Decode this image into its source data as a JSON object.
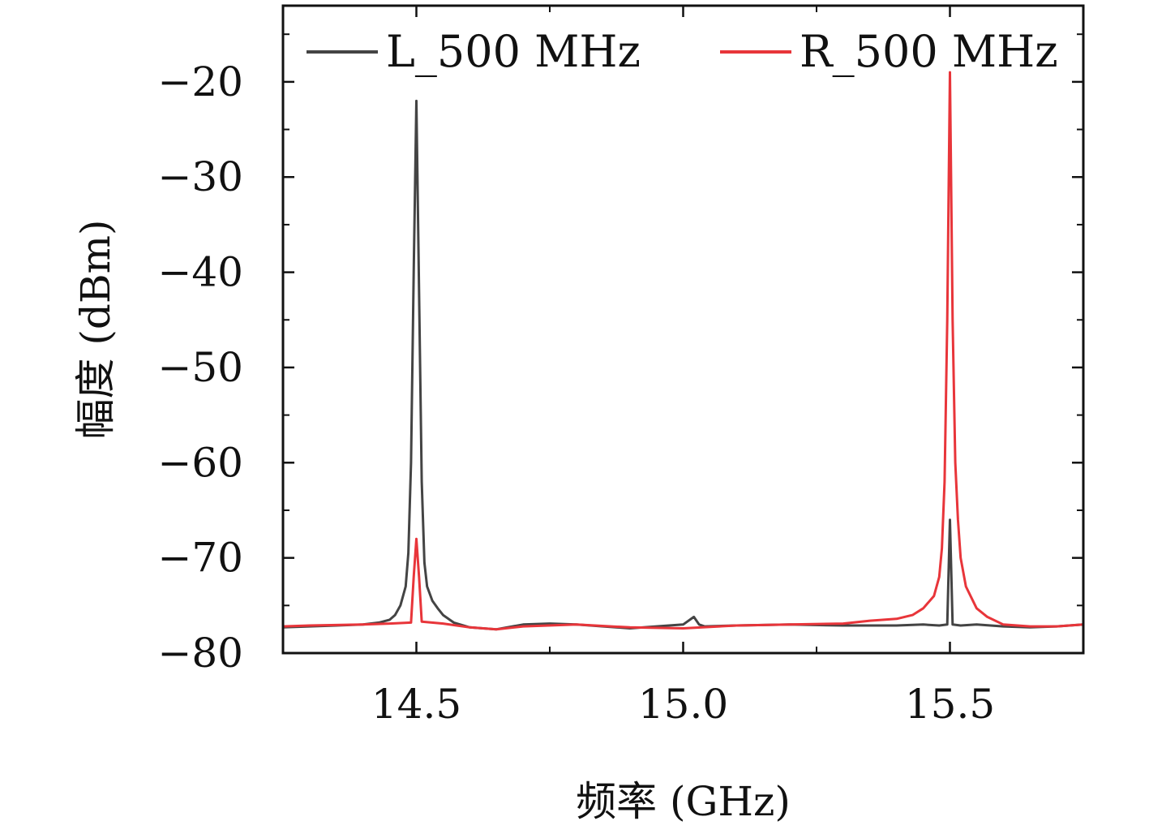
{
  "chart_data": {
    "type": "line",
    "title": "",
    "xlabel": "频率 (GHz)",
    "ylabel": "幅度 (dBm)",
    "xlim": [
      14.25,
      15.75
    ],
    "ylim": [
      -80,
      -12
    ],
    "xticks": [
      14.5,
      15.0,
      15.5
    ],
    "xtick_labels": [
      "14.5",
      "15.0",
      "15.5"
    ],
    "yticks": [
      -80,
      -70,
      -60,
      -50,
      -40,
      -30,
      -20
    ],
    "ytick_labels": [
      "−80",
      "−70",
      "−60",
      "−50",
      "−40",
      "−30",
      "−20"
    ],
    "grid": false,
    "legend_position": "top",
    "series": [
      {
        "name": "L_500 MHz",
        "color": "#444444",
        "x": [
          14.25,
          14.3,
          14.35,
          14.4,
          14.43,
          14.45,
          14.46,
          14.47,
          14.48,
          14.485,
          14.49,
          14.495,
          14.5,
          14.505,
          14.51,
          14.515,
          14.52,
          14.53,
          14.54,
          14.55,
          14.57,
          14.6,
          14.65,
          14.7,
          14.75,
          14.8,
          14.85,
          14.9,
          14.95,
          15.0,
          15.02,
          15.03,
          15.04,
          15.1,
          15.2,
          15.3,
          15.4,
          15.45,
          15.48,
          15.495,
          15.5,
          15.505,
          15.52,
          15.55,
          15.6,
          15.65,
          15.7,
          15.75
        ],
        "y": [
          -77.3,
          -77.2,
          -77.1,
          -77.0,
          -76.8,
          -76.5,
          -76.0,
          -75.0,
          -73.0,
          -69.5,
          -60.0,
          -40.0,
          -22.0,
          -42.0,
          -62.0,
          -70.5,
          -73.0,
          -74.5,
          -75.3,
          -76.0,
          -76.8,
          -77.3,
          -77.5,
          -77.0,
          -76.9,
          -77.0,
          -77.2,
          -77.4,
          -77.2,
          -77.0,
          -76.2,
          -77.0,
          -77.2,
          -77.1,
          -77.0,
          -77.1,
          -77.1,
          -77.0,
          -77.1,
          -77.0,
          -66.0,
          -77.0,
          -77.1,
          -77.0,
          -77.2,
          -77.3,
          -77.2,
          -77.0
        ]
      },
      {
        "name": "R_500 MHz",
        "color": "#e8353a",
        "x": [
          14.25,
          14.3,
          14.4,
          14.45,
          14.49,
          14.495,
          14.5,
          14.505,
          14.51,
          14.55,
          14.6,
          14.65,
          14.7,
          14.8,
          14.9,
          15.0,
          15.1,
          15.2,
          15.3,
          15.35,
          15.4,
          15.43,
          15.45,
          15.47,
          15.48,
          15.485,
          15.49,
          15.495,
          15.5,
          15.505,
          15.51,
          15.515,
          15.52,
          15.53,
          15.55,
          15.57,
          15.6,
          15.65,
          15.7,
          15.75
        ],
        "y": [
          -77.2,
          -77.1,
          -77.0,
          -76.9,
          -76.8,
          -72.0,
          -68.0,
          -72.0,
          -76.7,
          -76.9,
          -77.3,
          -77.5,
          -77.2,
          -77.0,
          -77.3,
          -77.4,
          -77.1,
          -77.0,
          -76.9,
          -76.6,
          -76.4,
          -76.0,
          -75.3,
          -74.0,
          -72.0,
          -69.0,
          -62.0,
          -45.0,
          -19.0,
          -45.0,
          -60.0,
          -66.0,
          -70.0,
          -73.0,
          -75.3,
          -76.2,
          -77.0,
          -77.2,
          -77.2,
          -77.0
        ]
      }
    ]
  }
}
